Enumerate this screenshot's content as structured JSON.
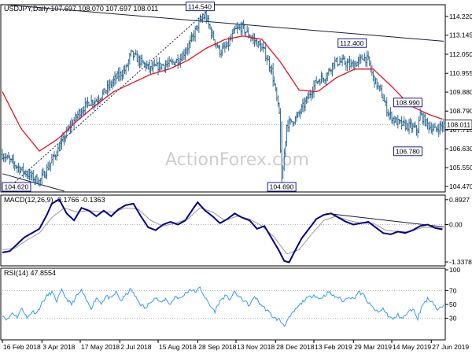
{
  "colors": {
    "price_bars": "#1f5f8b",
    "moving_average": "#e8111d",
    "trendline": "#1a1a3a",
    "macd_line": "#00008b",
    "signal_line": "#9a9a9a",
    "rsi_line": "#3399ff",
    "label_box_border": "#00008b",
    "watermark": "#c9ced6",
    "grid_dotted": "#999999"
  },
  "chart_data": [
    {
      "type": "ohlc",
      "title": "USDJPY,Daily  107.697 108.070 107.697 108.011",
      "y_ticks": [
        "114.220",
        "113.145",
        "112.050",
        "110.955",
        "109.880",
        "108.790",
        "107.710",
        "106.630",
        "105.550",
        "104.470"
      ],
      "ylim": [
        104.2,
        114.8
      ],
      "current_price": 108.011,
      "current_price_label": "108.011",
      "x_ticks": [
        "16 Feb 2018",
        "3 Apr 2018",
        "17 May 2018",
        "2 Jul 2018",
        "15 Aug 2018",
        "28 Sep 2018",
        "13 Nov 2018",
        "28 Dec 2018",
        "13 Feb 2019",
        "29 Mar 2019",
        "14 May 2019",
        "27 Jun 2019"
      ],
      "x_tick_index": [
        0,
        32,
        63,
        95,
        126,
        158,
        189,
        221,
        252,
        284,
        315,
        347
      ],
      "n_bars": 358,
      "close_path": [
        [
          0,
          106.3
        ],
        [
          12,
          105.6
        ],
        [
          22,
          105.1
        ],
        [
          30,
          104.75
        ],
        [
          38,
          105.7
        ],
        [
          46,
          106.7
        ],
        [
          54,
          107.8
        ],
        [
          62,
          108.7
        ],
        [
          70,
          109.3
        ],
        [
          76,
          109.4
        ],
        [
          84,
          110.0
        ],
        [
          92,
          110.7
        ],
        [
          100,
          111.2
        ],
        [
          104,
          112.1
        ],
        [
          112,
          111.6
        ],
        [
          120,
          111.2
        ],
        [
          128,
          111.4
        ],
        [
          136,
          111.5
        ],
        [
          144,
          111.8
        ],
        [
          152,
          112.7
        ],
        [
          158,
          113.7
        ],
        [
          164,
          114.3
        ],
        [
          170,
          113.1
        ],
        [
          176,
          112.2
        ],
        [
          182,
          112.5
        ],
        [
          188,
          113.4
        ],
        [
          194,
          113.6
        ],
        [
          200,
          113.1
        ],
        [
          206,
          112.7
        ],
        [
          212,
          112.2
        ],
        [
          218,
          111.1
        ],
        [
          224,
          108.6
        ],
        [
          226,
          104.7
        ],
        [
          230,
          108.0
        ],
        [
          238,
          108.4
        ],
        [
          246,
          109.4
        ],
        [
          254,
          110.5
        ],
        [
          262,
          110.8
        ],
        [
          268,
          111.6
        ],
        [
          276,
          111.6
        ],
        [
          282,
          111.4
        ],
        [
          288,
          111.6
        ],
        [
          292,
          111.9
        ],
        [
          296,
          111.7
        ],
        [
          300,
          110.7
        ],
        [
          306,
          109.9
        ],
        [
          312,
          108.7
        ],
        [
          318,
          108.2
        ],
        [
          324,
          108.0
        ],
        [
          330,
          107.9
        ],
        [
          336,
          107.7
        ],
        [
          338,
          108.6
        ],
        [
          344,
          108.0
        ],
        [
          350,
          107.7
        ],
        [
          354,
          107.9
        ],
        [
          357,
          108.011
        ]
      ],
      "ma_path": [
        [
          0,
          109.9
        ],
        [
          15,
          107.8
        ],
        [
          30,
          106.5
        ],
        [
          45,
          107.2
        ],
        [
          60,
          108.2
        ],
        [
          75,
          109.1
        ],
        [
          90,
          109.9
        ],
        [
          105,
          110.4
        ],
        [
          120,
          110.9
        ],
        [
          135,
          111.2
        ],
        [
          150,
          111.7
        ],
        [
          165,
          112.4
        ],
        [
          180,
          112.9
        ],
        [
          195,
          113.1
        ],
        [
          210,
          112.9
        ],
        [
          225,
          111.6
        ],
        [
          240,
          110.0
        ],
        [
          255,
          109.9
        ],
        [
          270,
          110.7
        ],
        [
          285,
          111.2
        ],
        [
          300,
          111.2
        ],
        [
          315,
          110.2
        ],
        [
          330,
          109.1
        ],
        [
          345,
          108.6
        ],
        [
          357,
          108.3
        ]
      ],
      "annotations": [
        {
          "text": "104.620",
          "index": 8,
          "price": 104.6,
          "position": "below-left"
        },
        {
          "text": "114.540",
          "index": 160,
          "price": 114.5,
          "position": "above"
        },
        {
          "text": "104.690",
          "index": 226,
          "price": 104.7,
          "position": "below"
        },
        {
          "text": "112.400",
          "index": 283,
          "price": 112.4,
          "position": "above"
        },
        {
          "text": "108.990",
          "index": 328,
          "price": 108.99,
          "position": "above"
        },
        {
          "text": "106.780",
          "index": 328,
          "price": 106.78,
          "position": "below"
        }
      ],
      "trendlines": [
        {
          "style": "solid",
          "from": [
            0,
            114.9
          ],
          "to": [
            357,
            112.8
          ]
        },
        {
          "style": "solid",
          "from": [
            0,
            105.2
          ],
          "to": [
            50,
            104.2
          ]
        },
        {
          "style": "dotted",
          "from": [
            10,
            104.7
          ],
          "to": [
            165,
            114.5
          ]
        }
      ],
      "watermark": "ActionForex.com"
    },
    {
      "type": "line",
      "title": "MACD(12,26,9) -0.1766 -0.1363",
      "y_ticks": [
        "0.8927",
        "0.00",
        "-1.3378"
      ],
      "ylim": [
        -1.45,
        1.0
      ],
      "macd_path": [
        [
          0,
          -1.0
        ],
        [
          6,
          -0.95
        ],
        [
          12,
          -0.7
        ],
        [
          18,
          -0.45
        ],
        [
          24,
          -0.3
        ],
        [
          30,
          -0.15
        ],
        [
          36,
          0.35
        ],
        [
          40,
          0.75
        ],
        [
          46,
          0.9
        ],
        [
          52,
          0.4
        ],
        [
          58,
          0.15
        ],
        [
          64,
          0.6
        ],
        [
          70,
          0.5
        ],
        [
          76,
          0.3
        ],
        [
          82,
          0.5
        ],
        [
          88,
          0.3
        ],
        [
          94,
          0.55
        ],
        [
          100,
          0.7
        ],
        [
          106,
          0.75
        ],
        [
          112,
          0.3
        ],
        [
          118,
          -0.1
        ],
        [
          124,
          -0.2
        ],
        [
          130,
          0.0
        ],
        [
          136,
          0.1
        ],
        [
          142,
          0.0
        ],
        [
          148,
          0.15
        ],
        [
          154,
          0.55
        ],
        [
          158,
          0.8
        ],
        [
          164,
          0.5
        ],
        [
          170,
          0.3
        ],
        [
          176,
          0.05
        ],
        [
          182,
          0.2
        ],
        [
          188,
          0.4
        ],
        [
          194,
          0.25
        ],
        [
          200,
          0.15
        ],
        [
          206,
          -0.15
        ],
        [
          212,
          -0.05
        ],
        [
          218,
          -0.5
        ],
        [
          224,
          -0.95
        ],
        [
          228,
          -1.3
        ],
        [
          232,
          -1.35
        ],
        [
          236,
          -1.0
        ],
        [
          242,
          -0.5
        ],
        [
          248,
          -0.15
        ],
        [
          254,
          0.2
        ],
        [
          260,
          0.35
        ],
        [
          266,
          0.4
        ],
        [
          272,
          0.25
        ],
        [
          278,
          0.1
        ],
        [
          284,
          0.0
        ],
        [
          290,
          0.05
        ],
        [
          296,
          0.1
        ],
        [
          302,
          -0.1
        ],
        [
          308,
          -0.3
        ],
        [
          314,
          -0.35
        ],
        [
          320,
          -0.25
        ],
        [
          326,
          -0.3
        ],
        [
          332,
          -0.2
        ],
        [
          338,
          -0.05
        ],
        [
          344,
          0.0
        ],
        [
          350,
          -0.12
        ],
        [
          357,
          -0.18
        ]
      ],
      "signal_path": [
        [
          0,
          -0.9
        ],
        [
          10,
          -0.85
        ],
        [
          20,
          -0.55
        ],
        [
          30,
          -0.3
        ],
        [
          40,
          0.25
        ],
        [
          50,
          0.6
        ],
        [
          60,
          0.45
        ],
        [
          70,
          0.5
        ],
        [
          80,
          0.45
        ],
        [
          90,
          0.45
        ],
        [
          100,
          0.6
        ],
        [
          110,
          0.55
        ],
        [
          120,
          0.15
        ],
        [
          130,
          -0.05
        ],
        [
          140,
          0.05
        ],
        [
          150,
          0.2
        ],
        [
          160,
          0.6
        ],
        [
          170,
          0.45
        ],
        [
          180,
          0.15
        ],
        [
          190,
          0.3
        ],
        [
          200,
          0.2
        ],
        [
          210,
          -0.05
        ],
        [
          220,
          -0.45
        ],
        [
          230,
          -1.05
        ],
        [
          240,
          -0.9
        ],
        [
          250,
          -0.35
        ],
        [
          260,
          0.15
        ],
        [
          270,
          0.3
        ],
        [
          280,
          0.15
        ],
        [
          290,
          0.05
        ],
        [
          300,
          0.05
        ],
        [
          310,
          -0.2
        ],
        [
          320,
          -0.25
        ],
        [
          330,
          -0.25
        ],
        [
          340,
          -0.1
        ],
        [
          350,
          -0.1
        ],
        [
          357,
          -0.14
        ]
      ],
      "trendline": {
        "from": [
          262,
          0.4
        ],
        "to": [
          357,
          -0.08
        ]
      }
    },
    {
      "type": "line",
      "title": "RSI(14) 47.8554",
      "y_ticks": [
        "100",
        "70",
        "50",
        "30"
      ],
      "ylim": [
        0,
        100
      ],
      "rsi_path": [
        [
          0,
          35
        ],
        [
          4,
          28
        ],
        [
          8,
          38
        ],
        [
          12,
          32
        ],
        [
          16,
          45
        ],
        [
          20,
          30
        ],
        [
          24,
          40
        ],
        [
          28,
          38
        ],
        [
          32,
          52
        ],
        [
          36,
          62
        ],
        [
          40,
          68
        ],
        [
          44,
          55
        ],
        [
          48,
          70
        ],
        [
          52,
          58
        ],
        [
          56,
          50
        ],
        [
          60,
          62
        ],
        [
          64,
          70
        ],
        [
          68,
          55
        ],
        [
          72,
          45
        ],
        [
          76,
          60
        ],
        [
          80,
          52
        ],
        [
          84,
          62
        ],
        [
          88,
          58
        ],
        [
          92,
          68
        ],
        [
          96,
          55
        ],
        [
          100,
          64
        ],
        [
          104,
          72
        ],
        [
          108,
          60
        ],
        [
          112,
          50
        ],
        [
          116,
          44
        ],
        [
          120,
          55
        ],
        [
          124,
          60
        ],
        [
          128,
          52
        ],
        [
          132,
          58
        ],
        [
          136,
          50
        ],
        [
          140,
          62
        ],
        [
          144,
          58
        ],
        [
          148,
          66
        ],
        [
          152,
          72
        ],
        [
          156,
          68
        ],
        [
          160,
          74
        ],
        [
          164,
          60
        ],
        [
          168,
          48
        ],
        [
          172,
          40
        ],
        [
          176,
          55
        ],
        [
          180,
          62
        ],
        [
          184,
          58
        ],
        [
          188,
          68
        ],
        [
          192,
          60
        ],
        [
          196,
          55
        ],
        [
          200,
          48
        ],
        [
          204,
          62
        ],
        [
          208,
          52
        ],
        [
          212,
          45
        ],
        [
          216,
          38
        ],
        [
          220,
          30
        ],
        [
          224,
          28
        ],
        [
          228,
          20
        ],
        [
          232,
          30
        ],
        [
          236,
          40
        ],
        [
          240,
          48
        ],
        [
          244,
          56
        ],
        [
          248,
          60
        ],
        [
          252,
          64
        ],
        [
          256,
          58
        ],
        [
          260,
          62
        ],
        [
          264,
          68
        ],
        [
          268,
          62
        ],
        [
          272,
          60
        ],
        [
          276,
          54
        ],
        [
          280,
          62
        ],
        [
          284,
          58
        ],
        [
          288,
          68
        ],
        [
          292,
          64
        ],
        [
          296,
          52
        ],
        [
          300,
          45
        ],
        [
          304,
          38
        ],
        [
          308,
          44
        ],
        [
          312,
          34
        ],
        [
          316,
          28
        ],
        [
          320,
          35
        ],
        [
          324,
          30
        ],
        [
          328,
          38
        ],
        [
          332,
          44
        ],
        [
          336,
          30
        ],
        [
          340,
          50
        ],
        [
          344,
          58
        ],
        [
          348,
          54
        ],
        [
          352,
          42
        ],
        [
          357,
          47.9
        ]
      ]
    }
  ]
}
